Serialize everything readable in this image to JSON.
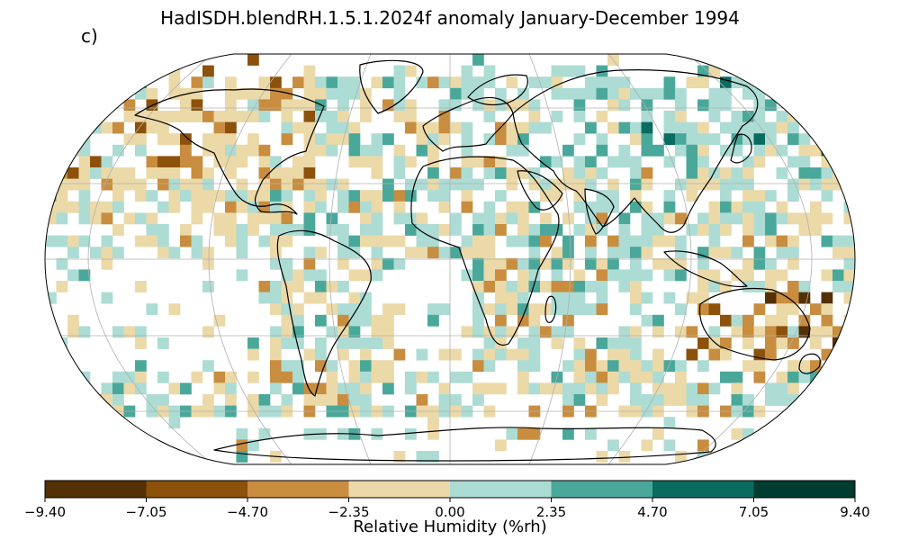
{
  "title": "HadISDH.blendRH.1.5.1.2024f anomaly January-December 1994",
  "panel_label": "c)",
  "colorbar": {
    "label": "Relative Humidity (%rh)",
    "ticks": [
      "−9.40",
      "−7.05",
      "−4.70",
      "−2.35",
      "0.00",
      "2.35",
      "4.70",
      "7.05",
      "9.40"
    ],
    "colors": [
      "#543005",
      "#8c510a",
      "#c88d3f",
      "#ecd9a8",
      "#acdcd4",
      "#4aa89b",
      "#0a6b5f",
      "#003c30"
    ]
  },
  "map": {
    "projection": "Robinson",
    "land_outline_color": "#000000",
    "graticule_color": "#b0b0b0"
  }
}
